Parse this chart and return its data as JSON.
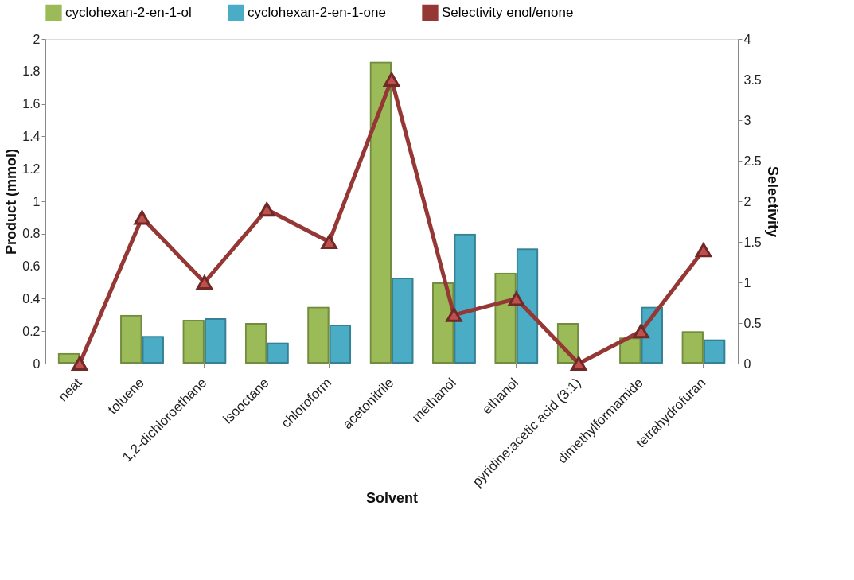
{
  "chart_data": {
    "type": "bar",
    "xlabel": "Solvent",
    "ylabel": "Product (mmol)",
    "y2label": "Selectivity",
    "categories": [
      "neat",
      "toluene",
      "1,2-dichloroethane",
      "isooctane",
      "chloroform",
      "acetonitrile",
      "methanol",
      "ethanol",
      "pyridine:acetic acid (3:1)",
      "dimethylformamide",
      "tetrahydrofuran"
    ],
    "series": [
      {
        "name": "cyclohexan-2-en-1-ol",
        "color": "#9bbb59",
        "values": [
          0.065,
          0.3,
          0.27,
          0.25,
          0.35,
          1.86,
          0.5,
          0.56,
          0.25,
          0.16,
          0.2
        ]
      },
      {
        "name": "cyclohexan-2-en-1-one",
        "color": "#4bacc6",
        "values": [
          null,
          0.17,
          0.28,
          0.13,
          0.24,
          0.53,
          0.8,
          0.71,
          null,
          0.35,
          0.15
        ]
      },
      {
        "name": "Selectivity enol/enone",
        "type": "line",
        "axis": "y2",
        "color": "#953735",
        "marker": "triangle",
        "values": [
          0,
          1.8,
          1.0,
          1.9,
          1.5,
          3.5,
          0.6,
          0.8,
          0,
          0.4,
          1.4
        ]
      }
    ],
    "ylim": [
      0,
      2
    ],
    "yticks": [
      0,
      0.2,
      0.4,
      0.6,
      0.8,
      1,
      1.2,
      1.4,
      1.6,
      1.8,
      2
    ],
    "y2lim": [
      0,
      4
    ],
    "y2ticks": [
      0,
      0.5,
      1,
      1.5,
      2,
      2.5,
      3,
      3.5,
      4
    ],
    "legend": "top",
    "grid": false
  }
}
